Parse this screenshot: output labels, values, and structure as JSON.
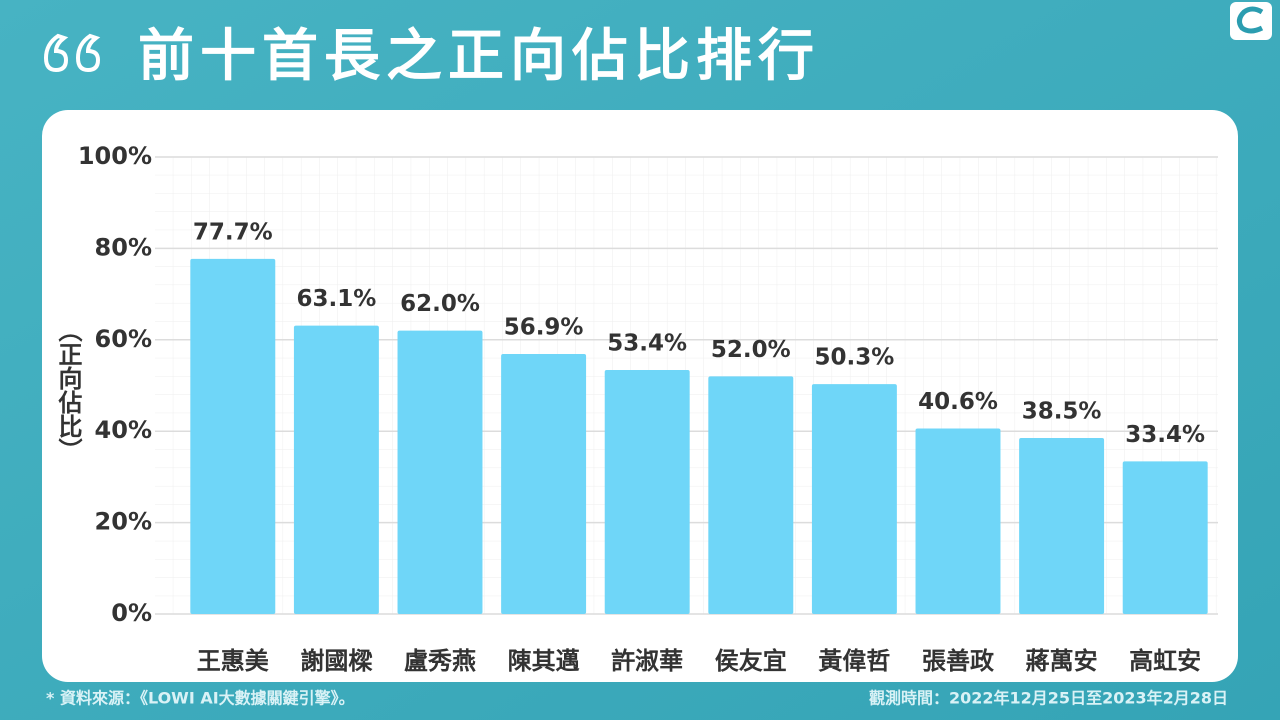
{
  "chart_data": {
    "type": "bar",
    "title": "前十首長之正向佔比排行",
    "ylabel": "（正向佔比）",
    "categories": [
      "王惠美",
      "謝國樑",
      "盧秀燕",
      "陳其邁",
      "許淑華",
      "侯友宜",
      "黃偉哲",
      "張善政",
      "蔣萬安",
      "高虹安"
    ],
    "values": [
      77.7,
      63.1,
      62.0,
      56.9,
      53.4,
      52.0,
      50.3,
      40.6,
      38.5,
      33.4
    ],
    "value_labels": [
      "77.7%",
      "63.1%",
      "62.0%",
      "56.9%",
      "53.4%",
      "52.0%",
      "50.3%",
      "40.6%",
      "38.5%",
      "33.4%"
    ],
    "color": "#6fd6f8",
    "ylim": [
      0,
      100
    ],
    "yticks": [
      {
        "value": 0,
        "label": "0%"
      },
      {
        "value": 20,
        "label": "20%"
      },
      {
        "value": 40,
        "label": "40%"
      },
      {
        "value": 60,
        "label": "60%"
      },
      {
        "value": 80,
        "label": "80%"
      },
      {
        "value": 100,
        "label": "100%"
      }
    ],
    "grid": true
  },
  "footer": {
    "source": "* 資料來源：《LOWI AI大數據關鍵引擎》。",
    "period": "觀測時間：2022年12月25日至2023年2月28日"
  }
}
